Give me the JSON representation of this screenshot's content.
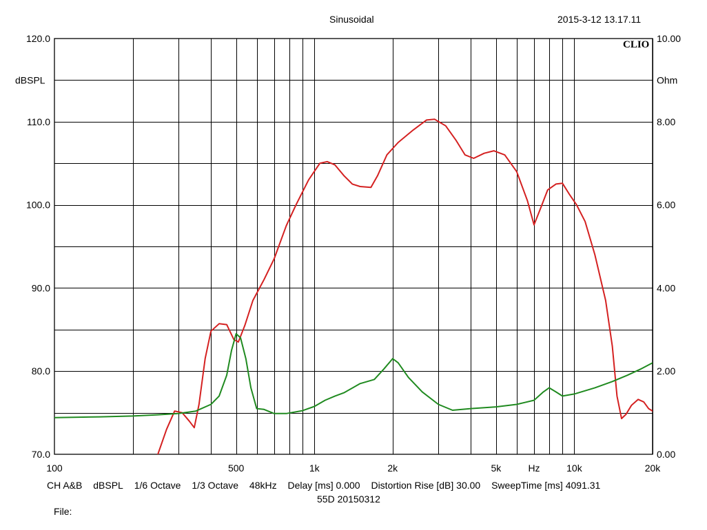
{
  "header": {
    "title": "Sinusoidal",
    "datetime": "2015-3-12 13.17.11"
  },
  "brand": "CLIO",
  "footer": {
    "items": [
      "CH A&B",
      "dBSPL",
      "1/6 Octave",
      "1/3 Octave",
      "48kHz",
      "Delay [ms] 0.000",
      "Distortion Rise [dB] 30.00",
      "SweepTime [ms] 4091.31"
    ],
    "file_name": "55D 20150312",
    "file_label": "File:"
  },
  "colors": {
    "spl": "#d42020",
    "impedance": "#1f8a1f",
    "grid": "#000000"
  },
  "chart_data": {
    "type": "line",
    "title": "Sinusoidal",
    "xscale": "log",
    "xlim": [
      100,
      20000
    ],
    "x_ticks": [
      {
        "value": 100,
        "label": "100"
      },
      {
        "value": 500,
        "label": "500"
      },
      {
        "value": 1000,
        "label": "1k"
      },
      {
        "value": 2000,
        "label": "2k"
      },
      {
        "value": 5000,
        "label": "5k"
      },
      {
        "value": 7000,
        "label": "Hz"
      },
      {
        "value": 10000,
        "label": "10k"
      },
      {
        "value": 20000,
        "label": "20k"
      }
    ],
    "x_grid": [
      200,
      300,
      400,
      500,
      600,
      700,
      800,
      900,
      1000,
      2000,
      3000,
      4000,
      5000,
      6000,
      7000,
      8000,
      9000,
      10000,
      20000
    ],
    "ylim_left": [
      70,
      120
    ],
    "ylabel_left": "dBSPL",
    "y_ticks_left": [
      "70.0",
      "80.0",
      "90.0",
      "100.0",
      "110.0",
      "120.0"
    ],
    "ylim_right": [
      0,
      10
    ],
    "ylabel_right": "Ohm",
    "y_ticks_right": [
      "0.00",
      "2.00",
      "4.00",
      "6.00",
      "8.00",
      "10.00"
    ],
    "grid": true,
    "series": [
      {
        "axis": "left",
        "color": "#d42020",
        "points": [
          [
            250,
            70.0
          ],
          [
            270,
            73.0
          ],
          [
            290,
            75.2
          ],
          [
            310,
            75.0
          ],
          [
            330,
            74.0
          ],
          [
            345,
            73.2
          ],
          [
            360,
            76.0
          ],
          [
            380,
            81.5
          ],
          [
            400,
            84.8
          ],
          [
            430,
            85.7
          ],
          [
            460,
            85.6
          ],
          [
            490,
            83.8
          ],
          [
            510,
            83.5
          ],
          [
            540,
            85.5
          ],
          [
            580,
            88.5
          ],
          [
            640,
            91.0
          ],
          [
            700,
            93.5
          ],
          [
            780,
            97.5
          ],
          [
            850,
            100.0
          ],
          [
            950,
            103.0
          ],
          [
            1050,
            105.0
          ],
          [
            1120,
            105.2
          ],
          [
            1200,
            104.8
          ],
          [
            1300,
            103.5
          ],
          [
            1400,
            102.5
          ],
          [
            1500,
            102.2
          ],
          [
            1650,
            102.1
          ],
          [
            1750,
            103.5
          ],
          [
            1900,
            106.0
          ],
          [
            2100,
            107.5
          ],
          [
            2400,
            109.0
          ],
          [
            2700,
            110.2
          ],
          [
            2900,
            110.3
          ],
          [
            3200,
            109.5
          ],
          [
            3500,
            107.8
          ],
          [
            3800,
            106.0
          ],
          [
            4100,
            105.6
          ],
          [
            4500,
            106.2
          ],
          [
            4900,
            106.5
          ],
          [
            5400,
            106.0
          ],
          [
            6000,
            104.0
          ],
          [
            6600,
            100.5
          ],
          [
            7000,
            97.6
          ],
          [
            7400,
            99.5
          ],
          [
            7900,
            101.8
          ],
          [
            8500,
            102.5
          ],
          [
            9000,
            102.6
          ],
          [
            9600,
            101.2
          ],
          [
            10200,
            100.0
          ],
          [
            11000,
            98.0
          ],
          [
            12000,
            94.0
          ],
          [
            13200,
            88.5
          ],
          [
            14000,
            83.0
          ],
          [
            14600,
            77.0
          ],
          [
            15200,
            74.3
          ],
          [
            15800,
            74.8
          ],
          [
            16600,
            75.9
          ],
          [
            17600,
            76.6
          ],
          [
            18500,
            76.3
          ],
          [
            19300,
            75.5
          ],
          [
            20000,
            75.2
          ]
        ]
      },
      {
        "axis": "right",
        "color": "#1f8a1f",
        "points": [
          [
            100,
            0.88
          ],
          [
            150,
            0.9
          ],
          [
            200,
            0.92
          ],
          [
            250,
            0.95
          ],
          [
            300,
            0.98
          ],
          [
            350,
            1.04
          ],
          [
            400,
            1.2
          ],
          [
            430,
            1.4
          ],
          [
            460,
            1.9
          ],
          [
            480,
            2.5
          ],
          [
            500,
            2.9
          ],
          [
            520,
            2.8
          ],
          [
            545,
            2.3
          ],
          [
            570,
            1.6
          ],
          [
            600,
            1.1
          ],
          [
            640,
            1.08
          ],
          [
            700,
            0.98
          ],
          [
            780,
            0.98
          ],
          [
            900,
            1.05
          ],
          [
            1000,
            1.15
          ],
          [
            1100,
            1.3
          ],
          [
            1200,
            1.4
          ],
          [
            1300,
            1.48
          ],
          [
            1500,
            1.7
          ],
          [
            1700,
            1.8
          ],
          [
            1850,
            2.05
          ],
          [
            2000,
            2.3
          ],
          [
            2100,
            2.2
          ],
          [
            2300,
            1.85
          ],
          [
            2600,
            1.5
          ],
          [
            3000,
            1.2
          ],
          [
            3400,
            1.06
          ],
          [
            4000,
            1.1
          ],
          [
            5000,
            1.14
          ],
          [
            6000,
            1.2
          ],
          [
            7000,
            1.3
          ],
          [
            7600,
            1.5
          ],
          [
            8000,
            1.6
          ],
          [
            8500,
            1.5
          ],
          [
            9000,
            1.4
          ],
          [
            10000,
            1.45
          ],
          [
            12000,
            1.6
          ],
          [
            14000,
            1.75
          ],
          [
            16000,
            1.9
          ],
          [
            18000,
            2.05
          ],
          [
            20000,
            2.2
          ]
        ]
      }
    ]
  }
}
